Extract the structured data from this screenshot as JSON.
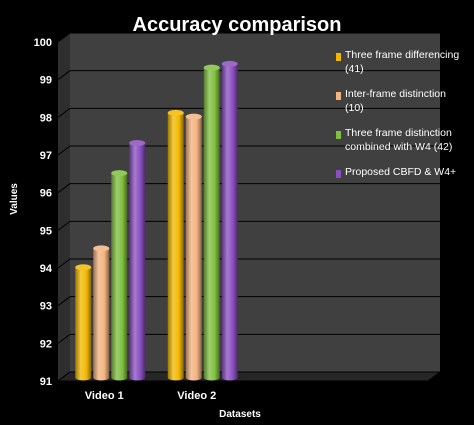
{
  "chart_data": {
    "type": "bar",
    "title": "Accuracy comparison",
    "xlabel": "Datasets",
    "ylabel": "Values",
    "ylim": [
      91,
      100
    ],
    "yticks": [
      91,
      92,
      93,
      94,
      95,
      96,
      97,
      98,
      99,
      100
    ],
    "categories": [
      "Video 1",
      "Video 2"
    ],
    "grid": true,
    "legend_position": "right",
    "series": [
      {
        "name": "Three frame differencing (41)",
        "legend_lines": [
          "Three frame differencing",
          "(41)"
        ],
        "color": "#f2b800",
        "values": [
          93.9,
          98.0
        ]
      },
      {
        "name": "Inter-frame distinction (10)",
        "legend_lines": [
          "Inter-frame distinction",
          "(10)"
        ],
        "color": "#f3b37f",
        "values": [
          94.4,
          97.9
        ]
      },
      {
        "name": "Three frame distinction combined with W4 (42)",
        "legend_lines": [
          "Three frame distinction",
          "combined with W4 (42)"
        ],
        "color": "#7fbf3f",
        "values": [
          96.4,
          99.2
        ]
      },
      {
        "name": "Proposed CBFD & W4+",
        "legend_lines": [
          "Proposed CBFD & W4+"
        ],
        "color": "#8a4fc0",
        "values": [
          97.2,
          99.3
        ]
      }
    ]
  }
}
